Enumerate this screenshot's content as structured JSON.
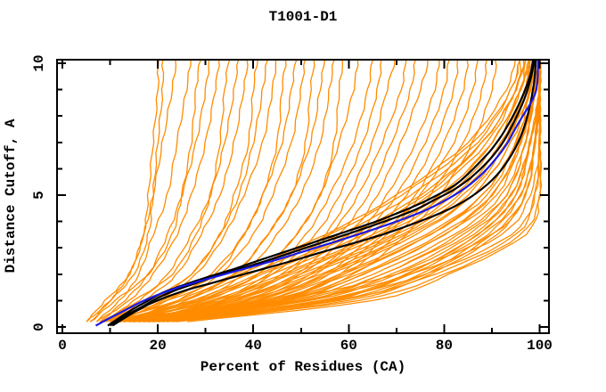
{
  "window_title": "T1001-D1",
  "chart_data": {
    "type": "line",
    "title": "T1001-D1",
    "xlabel": "Percent of Residues (CA)",
    "ylabel": "Distance Cutoff, A",
    "xlim": [
      -1.1,
      102
    ],
    "ylim": [
      -0.25,
      10.15
    ],
    "grid": false,
    "legend": "none",
    "x_major_ticks": [
      0,
      20,
      40,
      60,
      80,
      100
    ],
    "x_minor_ticks": [
      10,
      30,
      50,
      70,
      90
    ],
    "y_major_ticks": [
      0,
      5,
      10
    ],
    "y_minor_ticks": [
      1,
      2,
      3,
      4,
      6,
      7,
      8,
      9
    ],
    "colors": {
      "ensemble": "#ff8c00",
      "highlight_black": "#000000",
      "highlight_blue": "#1a1ae6",
      "axis": "#000000"
    },
    "series_notes": {
      "ensemble": "orange model curves: percent of residues (x) under each distance cutoff",
      "sample_cutoffs_A": [
        0.2,
        1,
        2,
        3.5,
        5,
        7,
        9,
        10.3
      ]
    },
    "ensemble_percent_at_cutoff": [
      [
        5,
        9,
        14,
        17,
        18,
        19,
        20,
        20
      ],
      [
        6,
        10,
        15,
        18,
        19,
        20,
        21,
        21
      ],
      [
        5,
        10,
        14,
        17,
        19,
        21,
        23,
        24
      ],
      [
        7,
        12,
        16,
        19,
        22,
        24,
        26,
        27
      ],
      [
        6,
        11,
        18,
        23,
        25,
        27,
        28,
        29
      ],
      [
        8,
        13,
        18,
        22,
        25,
        28,
        30,
        31
      ],
      [
        7,
        14,
        19,
        24,
        27,
        30,
        32,
        33
      ],
      [
        9,
        15,
        23,
        28,
        31,
        33,
        34,
        35
      ],
      [
        8,
        16,
        22,
        27,
        31,
        34,
        36,
        37
      ],
      [
        10,
        17,
        24,
        29,
        33,
        36,
        38,
        39
      ],
      [
        9,
        18,
        27,
        33,
        36,
        39,
        40,
        41
      ],
      [
        11,
        19,
        27,
        33,
        37,
        40,
        42,
        43
      ],
      [
        10,
        20,
        28,
        34,
        38,
        42,
        44,
        45
      ],
      [
        12,
        21,
        32,
        38,
        42,
        45,
        46,
        47
      ],
      [
        11,
        22,
        31,
        38,
        42,
        46,
        48,
        49
      ],
      [
        13,
        24,
        33,
        40,
        44,
        48,
        50,
        51
      ],
      [
        12,
        25,
        36,
        43,
        48,
        51,
        52,
        53
      ],
      [
        14,
        26,
        36,
        43,
        48,
        52,
        54,
        55
      ],
      [
        13,
        28,
        38,
        45,
        50,
        54,
        56,
        57
      ],
      [
        15,
        29,
        41,
        49,
        54,
        57,
        58,
        59
      ],
      [
        14,
        30,
        41,
        49,
        54,
        58,
        61,
        62
      ],
      [
        16,
        32,
        43,
        51,
        56,
        61,
        64,
        65
      ],
      [
        15,
        33,
        44,
        53,
        58,
        63,
        66,
        67
      ],
      [
        17,
        34,
        46,
        55,
        60,
        65,
        68,
        70
      ],
      [
        16,
        35,
        47,
        56,
        62,
        67,
        71,
        72
      ],
      [
        18,
        36,
        49,
        58,
        64,
        69,
        73,
        74
      ],
      [
        17,
        38,
        50,
        60,
        66,
        71,
        75,
        77
      ],
      [
        19,
        39,
        52,
        62,
        68,
        74,
        78,
        79
      ],
      [
        18,
        40,
        53,
        63,
        70,
        76,
        80,
        81
      ],
      [
        20,
        41,
        55,
        65,
        72,
        78,
        82,
        83
      ],
      [
        19,
        42,
        56,
        67,
        74,
        80,
        84,
        85
      ],
      [
        21,
        44,
        58,
        68,
        75,
        82,
        86,
        87
      ],
      [
        20,
        45,
        59,
        70,
        77,
        84,
        88,
        89
      ],
      [
        22,
        46,
        61,
        72,
        79,
        86,
        90,
        91
      ],
      [
        8,
        22,
        36,
        55,
        70,
        85,
        93,
        95
      ],
      [
        9,
        25,
        39,
        58,
        73,
        87,
        94,
        96
      ],
      [
        10,
        27,
        41,
        60,
        75,
        88,
        95,
        96
      ],
      [
        11,
        29,
        44,
        63,
        77,
        89,
        95,
        97
      ],
      [
        12,
        31,
        46,
        65,
        79,
        90,
        96,
        97
      ],
      [
        10,
        33,
        48,
        67,
        81,
        91,
        96,
        98
      ],
      [
        13,
        35,
        50,
        69,
        82,
        92,
        97,
        98
      ],
      [
        11,
        37,
        52,
        71,
        84,
        93,
        97,
        98
      ],
      [
        14,
        38,
        54,
        72,
        85,
        93,
        98,
        99
      ],
      [
        12,
        40,
        56,
        74,
        86,
        94,
        98,
        99
      ],
      [
        15,
        42,
        58,
        76,
        88,
        95,
        98,
        99
      ],
      [
        13,
        43,
        60,
        77,
        89,
        95,
        99,
        99
      ],
      [
        16,
        45,
        62,
        79,
        90,
        96,
        99,
        100
      ],
      [
        14,
        46,
        63,
        80,
        91,
        96,
        99,
        100
      ],
      [
        17,
        48,
        65,
        82,
        92,
        97,
        99,
        100
      ],
      [
        15,
        49,
        67,
        83,
        93,
        97,
        99,
        100
      ],
      [
        18,
        51,
        69,
        85,
        94,
        98,
        100,
        100
      ],
      [
        16,
        52,
        70,
        86,
        94,
        98,
        100,
        100
      ],
      [
        19,
        54,
        72,
        87,
        95,
        98,
        100,
        100
      ],
      [
        17,
        55,
        73,
        88,
        96,
        99,
        100,
        100
      ],
      [
        20,
        57,
        75,
        89,
        96,
        99,
        100,
        100
      ],
      [
        18,
        58,
        76,
        90,
        97,
        99,
        100,
        100
      ],
      [
        9,
        24,
        37,
        56,
        71,
        86,
        94,
        96
      ],
      [
        10,
        28,
        42,
        61,
        76,
        88,
        95,
        97
      ],
      [
        12,
        32,
        47,
        66,
        80,
        90,
        96,
        98
      ],
      [
        13,
        36,
        51,
        70,
        83,
        92,
        97,
        98
      ],
      [
        15,
        40,
        55,
        73,
        86,
        94,
        98,
        99
      ],
      [
        16,
        44,
        59,
        77,
        88,
        95,
        98,
        99
      ],
      [
        17,
        47,
        63,
        80,
        90,
        96,
        99,
        100
      ],
      [
        19,
        51,
        67,
        84,
        93,
        97,
        99,
        100
      ],
      [
        21,
        56,
        72,
        87,
        95,
        98,
        100,
        100
      ],
      [
        23,
        60,
        77,
        91,
        97,
        99,
        100,
        100
      ],
      [
        15,
        45,
        70,
        90,
        97,
        99,
        100,
        100
      ],
      [
        18,
        50,
        73,
        92,
        98,
        100,
        100,
        100
      ],
      [
        20,
        54,
        76,
        94,
        99,
        100,
        100,
        100
      ],
      [
        22,
        58,
        78,
        95,
        99,
        100,
        100,
        100
      ],
      [
        24,
        62,
        80,
        96,
        100,
        100,
        100,
        100
      ],
      [
        26,
        65,
        81,
        97,
        100,
        100,
        100,
        100
      ]
    ],
    "black_curves": [
      [
        [
          9.5,
          0.05
        ],
        [
          12,
          0.35
        ],
        [
          15,
          0.7
        ],
        [
          18,
          1.0
        ],
        [
          21,
          1.3
        ],
        [
          24,
          1.5
        ],
        [
          28,
          1.75
        ],
        [
          32,
          1.98
        ],
        [
          36,
          2.2
        ],
        [
          40,
          2.45
        ],
        [
          45,
          2.75
        ],
        [
          50,
          3.05
        ],
        [
          55,
          3.35
        ],
        [
          60,
          3.65
        ],
        [
          65,
          3.95
        ],
        [
          70,
          4.3
        ],
        [
          74,
          4.6
        ],
        [
          78,
          4.95
        ],
        [
          82,
          5.35
        ],
        [
          85,
          5.8
        ],
        [
          88,
          6.35
        ],
        [
          90,
          6.75
        ],
        [
          92,
          7.25
        ],
        [
          93.5,
          7.7
        ],
        [
          95,
          8.2
        ],
        [
          96.3,
          8.7
        ],
        [
          97.3,
          9.15
        ],
        [
          98.1,
          9.6
        ],
        [
          98.5,
          10.0
        ],
        [
          98.7,
          10.3
        ]
      ],
      [
        [
          10,
          0.05
        ],
        [
          13,
          0.4
        ],
        [
          16.5,
          0.75
        ],
        [
          20,
          1.1
        ],
        [
          23.5,
          1.38
        ],
        [
          27,
          1.6
        ],
        [
          31,
          1.85
        ],
        [
          35,
          2.08
        ],
        [
          39,
          2.3
        ],
        [
          44,
          2.58
        ],
        [
          49,
          2.88
        ],
        [
          54,
          3.18
        ],
        [
          59,
          3.48
        ],
        [
          64,
          3.78
        ],
        [
          69,
          4.1
        ],
        [
          74,
          4.45
        ],
        [
          78,
          4.82
        ],
        [
          82,
          5.2
        ],
        [
          85.5,
          5.65
        ],
        [
          88.5,
          6.15
        ],
        [
          90.5,
          6.55
        ],
        [
          92.5,
          7.05
        ],
        [
          94,
          7.55
        ],
        [
          95.5,
          8.1
        ],
        [
          96.8,
          8.65
        ],
        [
          97.8,
          9.2
        ],
        [
          98.6,
          9.8
        ],
        [
          99,
          10.3
        ]
      ],
      [
        [
          10.5,
          0.05
        ],
        [
          14,
          0.45
        ],
        [
          18,
          0.85
        ],
        [
          22,
          1.15
        ],
        [
          26,
          1.4
        ],
        [
          31,
          1.65
        ],
        [
          37,
          1.95
        ],
        [
          43,
          2.25
        ],
        [
          49,
          2.55
        ],
        [
          55,
          2.87
        ],
        [
          61,
          3.18
        ],
        [
          67,
          3.5
        ],
        [
          73,
          3.88
        ],
        [
          79,
          4.3
        ],
        [
          84,
          4.75
        ],
        [
          88,
          5.25
        ],
        [
          91,
          5.75
        ],
        [
          93.5,
          6.35
        ],
        [
          95.5,
          7.0
        ],
        [
          96.8,
          7.6
        ],
        [
          97.8,
          8.25
        ],
        [
          98.5,
          8.9
        ],
        [
          99,
          9.5
        ],
        [
          99.2,
          10.3
        ]
      ]
    ],
    "blue_curve": [
      [
        7,
        0.05
      ],
      [
        9.5,
        0.3
      ],
      [
        13,
        0.62
      ],
      [
        16.5,
        0.95
      ],
      [
        20,
        1.22
      ],
      [
        24,
        1.48
      ],
      [
        28,
        1.7
      ],
      [
        33,
        1.95
      ],
      [
        38,
        2.2
      ],
      [
        43,
        2.45
      ],
      [
        48,
        2.72
      ],
      [
        53,
        3.0
      ],
      [
        58,
        3.28
      ],
      [
        63,
        3.57
      ],
      [
        68,
        3.87
      ],
      [
        73,
        4.2
      ],
      [
        77,
        4.5
      ],
      [
        81,
        4.88
      ],
      [
        84.5,
        5.28
      ],
      [
        87.5,
        5.73
      ],
      [
        90,
        6.2
      ],
      [
        92,
        6.65
      ],
      [
        93.5,
        7.05
      ],
      [
        95,
        7.55
      ],
      [
        96.3,
        7.95
      ],
      [
        97.5,
        8.3
      ],
      [
        98.6,
        8.65
      ],
      [
        99.3,
        9.0
      ],
      [
        99.6,
        9.5
      ],
      [
        99.65,
        10.3
      ]
    ]
  }
}
